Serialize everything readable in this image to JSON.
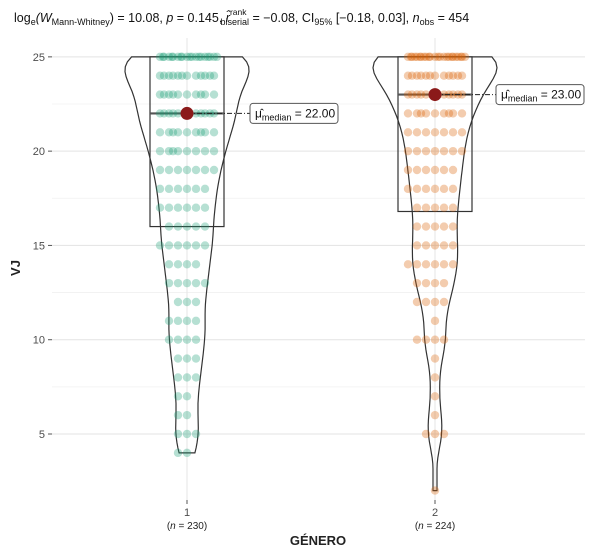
{
  "chart_data": {
    "type": "violin-box-scatter",
    "subtitle": {
      "lead": "log",
      "lead_sub": "e",
      "w": "(W",
      "w_sub": "Mann-Whitney",
      "rest1": ") = 10.08, ",
      "p": "p",
      "rest2": " = 0.145, ",
      "r": "r̂",
      "r_sup": "rank",
      "r_sub": "biserial",
      "rest3": " = −0.08, CI",
      "ci_sub": "95%",
      "rest4": " [−0.18, 0.03], ",
      "n": "n",
      "n_sub": "obs",
      "rest5": " = 454"
    },
    "xlabel": "GÉNERO",
    "ylabel": "VJ",
    "ylim": [
      1.5,
      26
    ],
    "y_ticks": [
      5,
      10,
      15,
      20,
      25
    ],
    "grid": true,
    "groups": [
      {
        "label": "1",
        "n_label": "(n = 230)",
        "n_prefix": "(",
        "n_var": "n",
        "n_rest": " = 230)",
        "color": "#1b9e77",
        "q1": 16,
        "median": 22,
        "q3": 25,
        "median_label": "22.00",
        "whisker_low": 4,
        "whisker_high": 25,
        "values": [
          25,
          25,
          25,
          25,
          25,
          25,
          25,
          25,
          25,
          25,
          25,
          25,
          25,
          25,
          25,
          25,
          25,
          25,
          25,
          25,
          24,
          24,
          24,
          24,
          24,
          24,
          24,
          24,
          24,
          24,
          24,
          24,
          23,
          23,
          23,
          23,
          23,
          23,
          23,
          23,
          23,
          23,
          22,
          22,
          22,
          22,
          22,
          22,
          22,
          22,
          22,
          22,
          22,
          21,
          21,
          21,
          21,
          21,
          21,
          21,
          21,
          21,
          20,
          20,
          20,
          20,
          20,
          20,
          20,
          20,
          19,
          19,
          19,
          19,
          19,
          19,
          19,
          18,
          18,
          18,
          18,
          18,
          18,
          17,
          17,
          17,
          17,
          17,
          17,
          16,
          16,
          16,
          16,
          16,
          15,
          15,
          15,
          15,
          15,
          15,
          14,
          14,
          14,
          14,
          13,
          13,
          13,
          13,
          13,
          12,
          12,
          12,
          11,
          11,
          11,
          11,
          10,
          10,
          10,
          10,
          9,
          9,
          9,
          8,
          8,
          8,
          7,
          7,
          6,
          6,
          5,
          5,
          5,
          4,
          4
        ]
      },
      {
        "label": "2",
        "n_label": "(n = 224)",
        "n_prefix": "(",
        "n_var": "n",
        "n_rest": " = 224)",
        "color": "#d95f02",
        "q1": 16.8,
        "median": 23,
        "q3": 25,
        "median_label": "23.00",
        "whisker_low": 2,
        "whisker_high": 25,
        "values": [
          25,
          25,
          25,
          25,
          25,
          25,
          25,
          25,
          25,
          25,
          25,
          25,
          25,
          25,
          25,
          25,
          25,
          25,
          25,
          25,
          25,
          25,
          25,
          25,
          24,
          24,
          24,
          24,
          24,
          24,
          24,
          24,
          24,
          24,
          24,
          24,
          23,
          23,
          23,
          23,
          23,
          23,
          23,
          23,
          23,
          23,
          23,
          22,
          22,
          22,
          22,
          22,
          22,
          22,
          22,
          22,
          21,
          21,
          21,
          21,
          21,
          21,
          21,
          20,
          20,
          20,
          20,
          20,
          20,
          20,
          19,
          19,
          19,
          19,
          19,
          19,
          18,
          18,
          18,
          18,
          18,
          18,
          17,
          17,
          17,
          17,
          17,
          16,
          16,
          16,
          16,
          16,
          15,
          15,
          15,
          15,
          15,
          14,
          14,
          14,
          14,
          14,
          14,
          13,
          13,
          13,
          13,
          12,
          12,
          12,
          12,
          11,
          10,
          10,
          10,
          10,
          9,
          8,
          7,
          6,
          5,
          5,
          5,
          2
        ]
      }
    ],
    "median_label_prefix": "μ̂",
    "median_label_sub": "median",
    "median_label_eq": " = "
  }
}
